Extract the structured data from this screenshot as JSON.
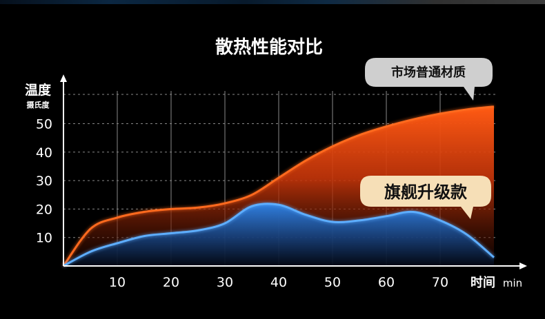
{
  "chart_data": {
    "type": "area",
    "title": "散热性能对比",
    "ylabel": "温度",
    "ylabel_unit": "摄氏度",
    "xlabel": "时间",
    "xlabel_unit": "min",
    "xlim": [
      0,
      80
    ],
    "ylim": [
      0,
      60
    ],
    "x_ticks": [
      10,
      20,
      30,
      40,
      50,
      60,
      70
    ],
    "y_ticks": [
      10,
      20,
      30,
      40,
      50
    ],
    "grid": "vertical",
    "series": [
      {
        "name": "市场普通材质",
        "color": "#ff5a14",
        "x": [
          0,
          5,
          10,
          15,
          20,
          25,
          30,
          35,
          40,
          45,
          50,
          55,
          60,
          65,
          70,
          75,
          80
        ],
        "values": [
          0,
          13,
          17,
          19,
          20,
          20.5,
          22,
          25,
          31,
          37,
          42,
          46,
          49,
          51.5,
          53.5,
          55,
          56
        ]
      },
      {
        "name": "旗舰升级款",
        "color": "#4a9eff",
        "x": [
          0,
          5,
          10,
          15,
          20,
          25,
          30,
          35,
          40,
          45,
          50,
          55,
          60,
          65,
          70,
          75,
          80
        ],
        "values": [
          0,
          5,
          8,
          10.5,
          11.5,
          12.5,
          15,
          21,
          21.5,
          18,
          15.5,
          16,
          17.5,
          19,
          16,
          11,
          3
        ]
      }
    ]
  }
}
